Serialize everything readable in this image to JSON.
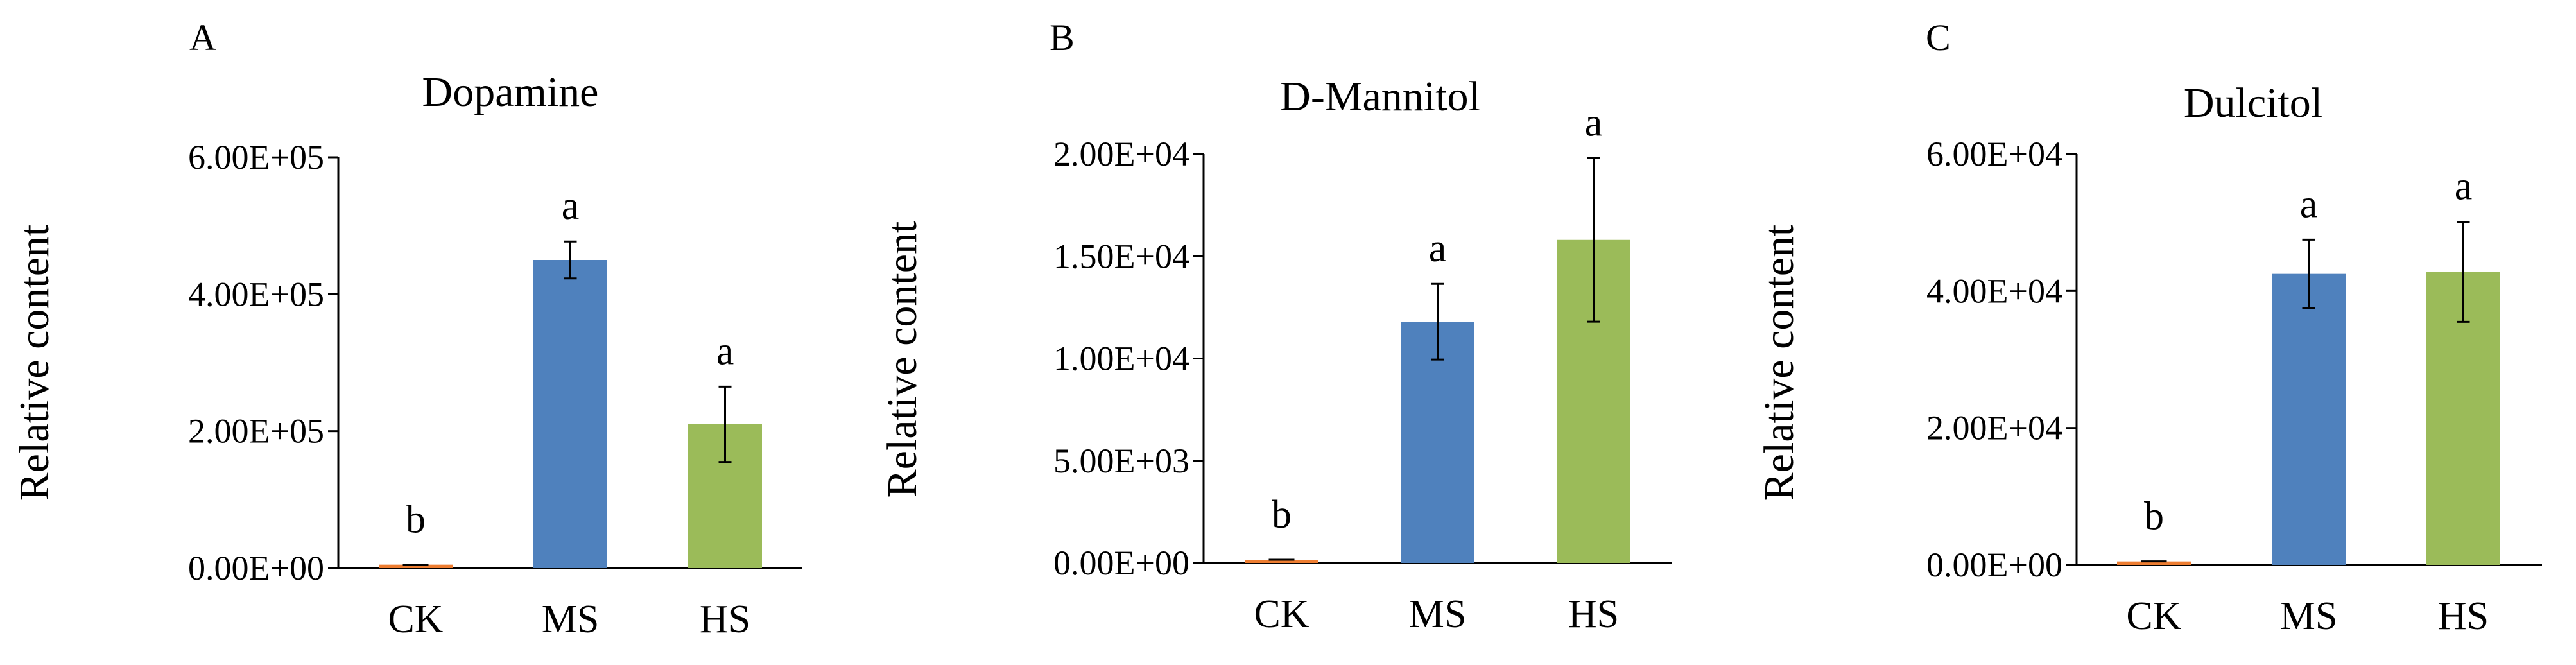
{
  "chart_data": [
    {
      "panel": "A",
      "type": "bar",
      "title": "Dopamine",
      "ylabel": "Relative content",
      "xlabel": "",
      "categories": [
        "CK",
        "MS",
        "HS"
      ],
      "values": [
        5000,
        450000,
        210000
      ],
      "errors": [
        0,
        27000,
        55000
      ],
      "significance": [
        "b",
        "a",
        "a"
      ],
      "ylim": [
        0,
        600000
      ],
      "yticks": [
        0,
        200000,
        400000,
        600000
      ],
      "ytick_labels": [
        "0.00E+00",
        "2.00E+05",
        "4.00E+05",
        "6.00E+05"
      ],
      "colors": [
        "#ED7D31",
        "#4F81BD",
        "#9BBB59"
      ],
      "grid": false
    },
    {
      "panel": "B",
      "type": "bar",
      "title": "D-Mannitol",
      "ylabel": "Relative content",
      "xlabel": "",
      "categories": [
        "CK",
        "MS",
        "HS"
      ],
      "values": [
        150,
        11800,
        15800
      ],
      "errors": [
        0,
        1850,
        4000
      ],
      "significance": [
        "b",
        "a",
        "a"
      ],
      "ylim": [
        0,
        20000
      ],
      "yticks": [
        0,
        5000,
        10000,
        15000,
        20000
      ],
      "ytick_labels": [
        "0.00E+00",
        "5.00E+03",
        "1.00E+04",
        "1.50E+04",
        "2.00E+04"
      ],
      "colors": [
        "#ED7D31",
        "#4F81BD",
        "#9BBB59"
      ],
      "grid": false
    },
    {
      "panel": "C",
      "type": "bar",
      "title": "Dulcitol",
      "ylabel": "Relative content",
      "xlabel": "",
      "categories": [
        "CK",
        "MS",
        "HS"
      ],
      "values": [
        500,
        42500,
        42800
      ],
      "errors": [
        0,
        5000,
        7300
      ],
      "significance": [
        "b",
        "a",
        "a"
      ],
      "ylim": [
        0,
        60000
      ],
      "yticks": [
        0,
        20000,
        40000,
        60000
      ],
      "ytick_labels": [
        "0.00E+00",
        "2.00E+04",
        "4.00E+04",
        "6.00E+04"
      ],
      "colors": [
        "#ED7D31",
        "#4F81BD",
        "#9BBB59"
      ],
      "grid": false
    }
  ]
}
